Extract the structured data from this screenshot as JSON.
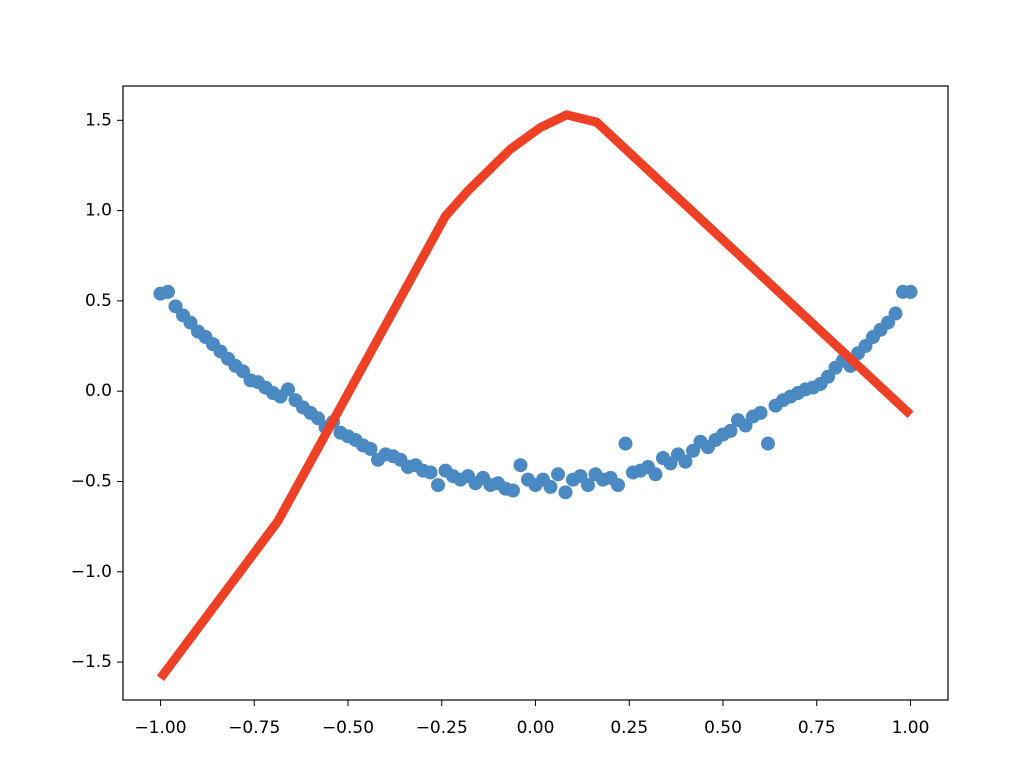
{
  "chart_data": {
    "type": "scatter",
    "xlim": [
      -1.1,
      1.1
    ],
    "ylim": [
      -1.71,
      1.69
    ],
    "xticks": [
      {
        "value": -1,
        "label": "−1.00"
      },
      {
        "value": -0.75,
        "label": "−0.75"
      },
      {
        "value": -0.5,
        "label": "−0.50"
      },
      {
        "value": -0.25,
        "label": "−0.25"
      },
      {
        "value": 0,
        "label": "0.00"
      },
      0.25,
      {
        "value": 0.5,
        "label": "0.50"
      },
      0.75,
      {
        "value": 1,
        "label": "1.00"
      }
    ],
    "yticks": [
      {
        "value": -1.5,
        "label": "−1.5"
      },
      {
        "value": -1,
        "label": "−1.0"
      },
      {
        "value": -0.5,
        "label": "−0.5"
      },
      {
        "value": 0,
        "label": "0.0"
      },
      0.5,
      {
        "value": 1,
        "label": "1.0"
      },
      1.5
    ],
    "series": [
      {
        "type": "scatter",
        "color": "#4a89c2",
        "x": [
          -1.0,
          -0.98,
          -0.96,
          -0.94,
          -0.92,
          -0.9,
          -0.88,
          -0.86,
          -0.84,
          -0.82,
          -0.8,
          -0.78,
          -0.76,
          -0.74,
          -0.72,
          -0.7,
          -0.68,
          -0.66,
          -0.64,
          -0.62,
          -0.6,
          -0.58,
          -0.56,
          -0.54,
          -0.52,
          -0.5,
          -0.48,
          -0.46,
          -0.44,
          -0.42,
          -0.4,
          -0.38,
          -0.36,
          -0.34,
          -0.32,
          -0.3,
          -0.28,
          -0.26,
          -0.24,
          -0.22,
          -0.2,
          -0.18,
          -0.16,
          -0.14,
          -0.12,
          -0.1,
          -0.08,
          -0.06,
          -0.04,
          -0.02,
          0.0,
          0.02,
          0.04,
          0.06,
          0.08,
          0.1,
          0.12,
          0.14,
          0.16,
          0.18,
          0.2,
          0.22,
          0.24,
          0.26,
          0.28,
          0.3,
          0.32,
          0.34,
          0.36,
          0.38,
          0.4,
          0.42,
          0.44,
          0.46,
          0.48,
          0.5,
          0.52,
          0.54,
          0.56,
          0.58,
          0.6,
          0.62,
          0.64,
          0.66,
          0.68,
          0.7,
          0.72,
          0.74,
          0.76,
          0.78,
          0.8,
          0.82,
          0.84,
          0.86,
          0.88,
          0.9,
          0.92,
          0.94,
          0.96,
          0.98,
          1.0
        ],
        "values": [
          0.54,
          0.55,
          0.47,
          0.42,
          0.38,
          0.33,
          0.3,
          0.26,
          0.22,
          0.18,
          0.14,
          0.11,
          0.06,
          0.05,
          0.02,
          -0.01,
          -0.03,
          0.01,
          -0.05,
          -0.09,
          -0.12,
          -0.15,
          -0.2,
          -0.17,
          -0.23,
          -0.25,
          -0.27,
          -0.3,
          -0.32,
          -0.38,
          -0.35,
          -0.36,
          -0.38,
          -0.42,
          -0.41,
          -0.44,
          -0.45,
          -0.52,
          -0.44,
          -0.47,
          -0.49,
          -0.47,
          -0.51,
          -0.48,
          -0.52,
          -0.51,
          -0.54,
          -0.55,
          -0.41,
          -0.49,
          -0.52,
          -0.49,
          -0.53,
          -0.46,
          -0.56,
          -0.49,
          -0.47,
          -0.52,
          -0.46,
          -0.49,
          -0.48,
          -0.52,
          -0.29,
          -0.45,
          -0.44,
          -0.42,
          -0.46,
          -0.37,
          -0.4,
          -0.35,
          -0.39,
          -0.33,
          -0.28,
          -0.31,
          -0.27,
          -0.24,
          -0.22,
          -0.16,
          -0.19,
          -0.14,
          -0.12,
          -0.29,
          -0.08,
          -0.05,
          -0.03,
          -0.01,
          0.01,
          0.02,
          0.04,
          0.08,
          0.13,
          0.17,
          0.14,
          0.21,
          0.25,
          0.3,
          0.34,
          0.38,
          0.43,
          0.55,
          0.55
        ]
      },
      {
        "type": "line",
        "color": "#ee4024",
        "x": [
          -1.0,
          -0.687,
          -0.24,
          -0.18,
          -0.067,
          0.013,
          0.083,
          0.163,
          1.0
        ],
        "values": [
          -1.59,
          -0.72,
          0.97,
          1.11,
          1.34,
          1.46,
          1.53,
          1.49,
          -0.13
        ]
      }
    ]
  }
}
